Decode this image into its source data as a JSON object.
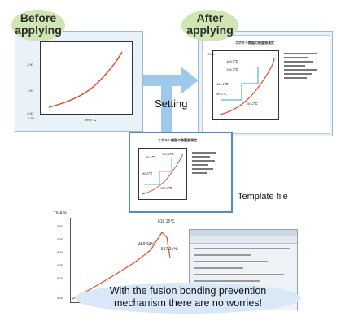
{
  "labels": {
    "before": "Before\napplying",
    "after": "After\napplying",
    "setting": "Setting",
    "template_file": "Template file",
    "fusion": "With the fusion bonding prevention\nmechanism there are no worries!"
  },
  "before_chart": {
    "ticks_y": [
      "2.00",
      "1.00",
      "0.00",
      "-0.50"
    ],
    "xlabel": "Temp  ℃"
  },
  "after_sheet": {
    "title": "エポキシ樹脂の熱膛張測定",
    "chart_label": "TMA",
    "annotations": [
      "188.5℃",
      "196.0℃",
      "120.2℃",
      "99.0℃",
      "150.2℃"
    ]
  },
  "template_sheet": {
    "title": "エポキシ樹脂の熱膛張測定",
    "annotations": [
      "98.5℃",
      "109.5℃",
      "98.5℃",
      "130.0℃"
    ]
  },
  "tma_chart": {
    "ylabel": "TMA %",
    "yticks": [
      "0.60",
      "0.50",
      "0.40",
      "0.30",
      "0.20",
      "0.00"
    ],
    "peak1": "618.15℃",
    "peak2": "557.31℃",
    "inflect": "468.94℃"
  },
  "chart_data": {
    "type": "line",
    "ylabel": "TMA %",
    "yticks": [
      "0.60",
      "0.50",
      "0.40",
      "0.30",
      "0.20",
      "0.00"
    ],
    "annotations": [
      "618.15℃",
      "557.31℃",
      "468.94℃"
    ]
  },
  "colors": {
    "arrow": "#9fc9ea",
    "bubble": "#cfe6b4",
    "curve": "#d9502a",
    "panel_border": "#9eb8d4",
    "highlight": "#4f8ccc",
    "teal": "#2aa9b8"
  }
}
